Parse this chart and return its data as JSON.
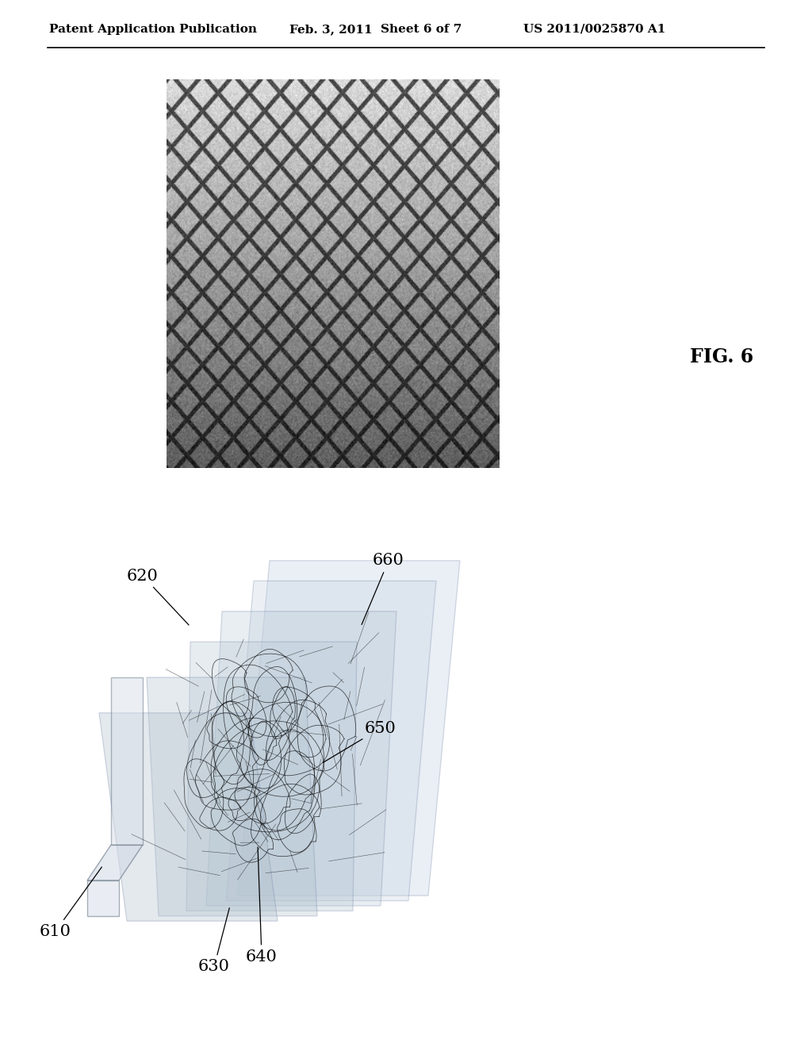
{
  "title_left": "Patent Application Publication",
  "title_mid": "Feb. 3, 2011",
  "title_sheet": "Sheet 6 of 7",
  "title_right": "US 2011/0025870 A1",
  "fig_label": "FIG. 6",
  "background_color": "#ffffff",
  "header_fontsize": 11,
  "label_fontsize": 15
}
